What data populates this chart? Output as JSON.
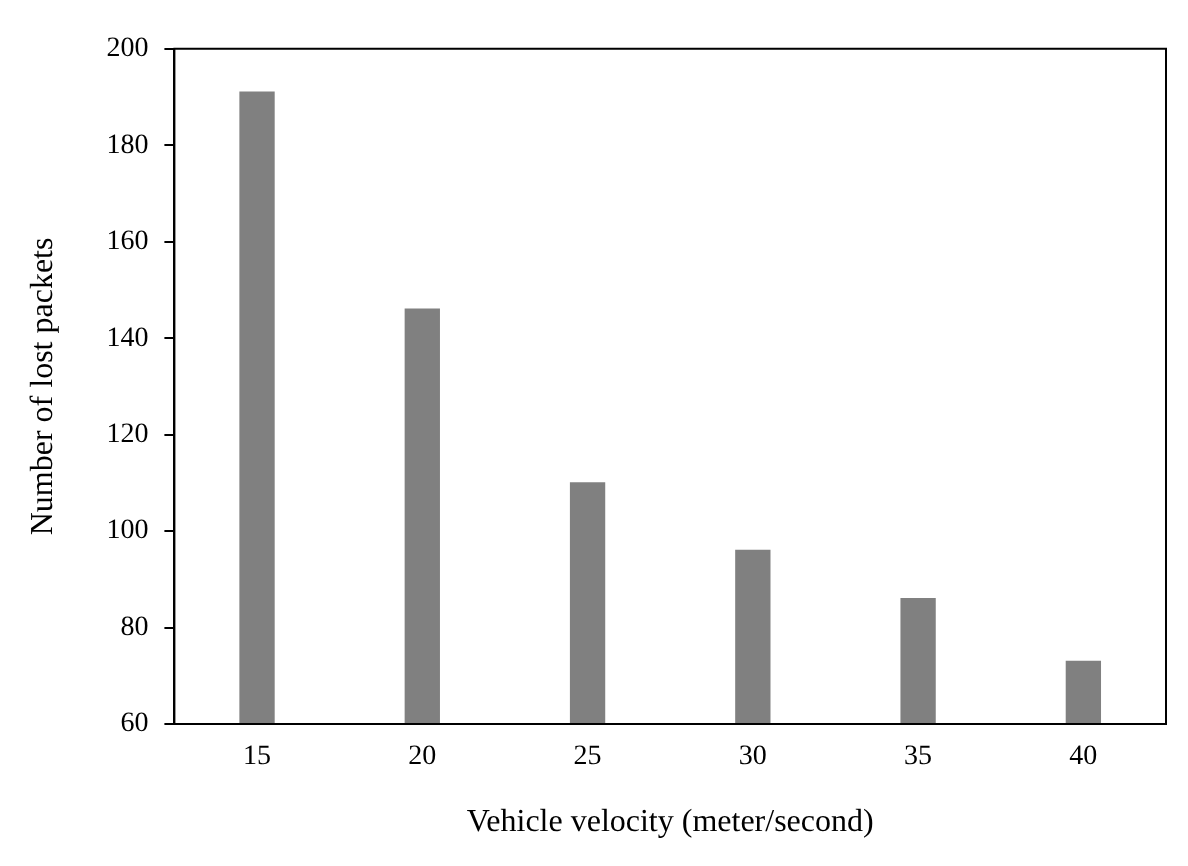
{
  "chart_data": {
    "type": "bar",
    "xlabel": "Vehicle velocity (meter/second)",
    "ylabel": "Number of lost packets",
    "categories": [
      "15",
      "20",
      "25",
      "30",
      "35",
      "40"
    ],
    "values": [
      191,
      146,
      110,
      96,
      86,
      73
    ],
    "color": "#808080",
    "ylim": [
      60,
      200
    ],
    "yticks": [
      60,
      80,
      100,
      120,
      140,
      160,
      180,
      200
    ],
    "grid": false,
    "legend": false
  }
}
